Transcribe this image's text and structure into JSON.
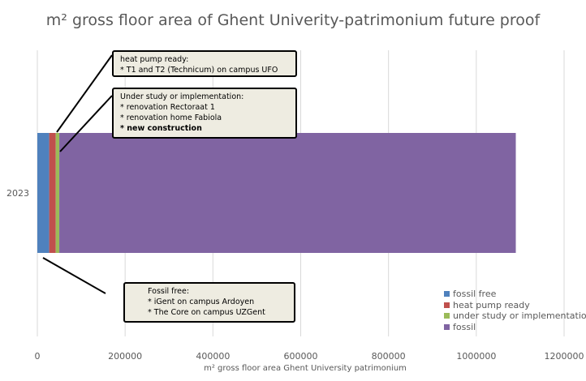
{
  "chart_data": {
    "type": "bar",
    "orientation": "horizontal",
    "stacked": true,
    "title": "m² gross floor area of Ghent Univerity-patrimonium future proof",
    "xlabel": "m² gross floor area Ghent University patrimonium",
    "ylabel": "",
    "categories": [
      "2023"
    ],
    "xlim": [
      0,
      1200000
    ],
    "xticks": [
      "0",
      "200000",
      "400000",
      "600000",
      "800000",
      "1000000",
      "1200000"
    ],
    "grid": true,
    "legend_position": "bottom-right",
    "series": [
      {
        "name": "fossil free",
        "values": [
          27000
        ],
        "color": "#4f81bd"
      },
      {
        "name": "heat pump ready",
        "values": [
          15000
        ],
        "color": "#c0504d"
      },
      {
        "name": "under study or implementation",
        "values": [
          8000
        ],
        "color": "#9bbb59"
      },
      {
        "name": "fossil",
        "values": [
          1040000
        ],
        "color": "#8064a2"
      }
    ]
  },
  "callouts": {
    "heat_pump": {
      "lines": [
        "heat pump ready:",
        "* T1 and T2  (Technicum) on campus UFO"
      ]
    },
    "study": {
      "lines": [
        "Under study or implementation:",
        "* renovation Rectoraat 1",
        "* renovation home Fabiola",
        "* new construction"
      ]
    },
    "fossil_free": {
      "lines": [
        "Fossil free:",
        "* iGent on campus Ardoyen",
        "* The Core on campus UZGent"
      ]
    }
  }
}
